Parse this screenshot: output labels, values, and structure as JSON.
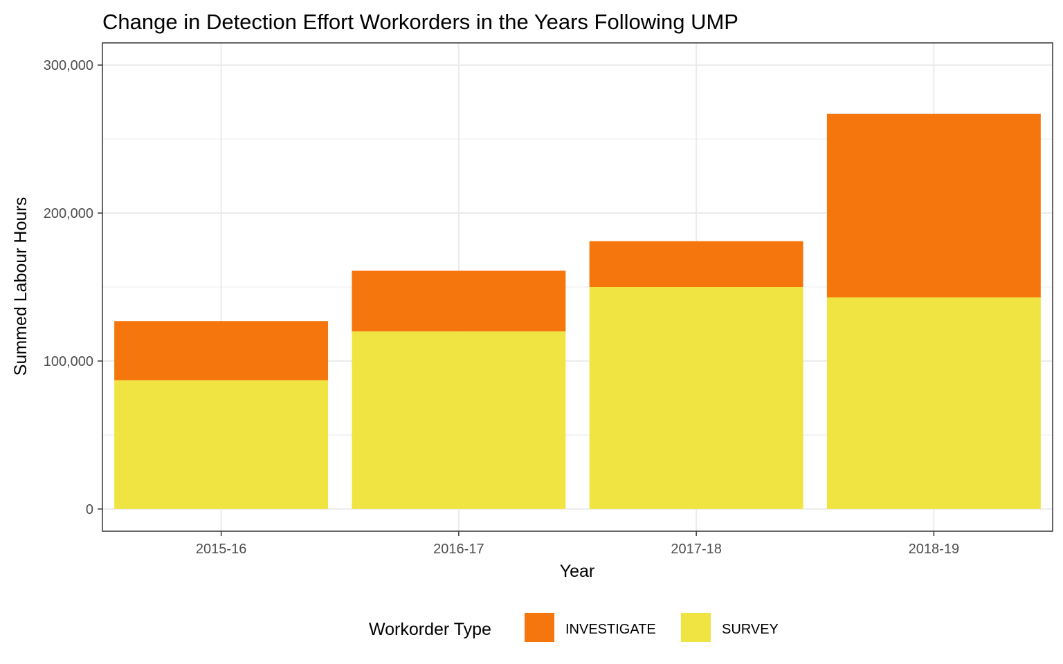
{
  "chart_data": {
    "type": "bar",
    "stacked": true,
    "title": "Change in Detection Effort Workorders in the Years Following UMP",
    "xlabel": "Year",
    "ylabel": "Summed Labour Hours",
    "categories": [
      "2015-16",
      "2016-17",
      "2017-18",
      "2018-19"
    ],
    "series": [
      {
        "name": "SURVEY",
        "color": "#efe442",
        "values": [
          87000,
          120000,
          150000,
          143000
        ]
      },
      {
        "name": "INVESTIGATE",
        "color": "#f5760c",
        "values": [
          40000,
          41000,
          31000,
          124000
        ]
      }
    ],
    "ylim": [
      -15000,
      315000
    ],
    "yticks": [
      0,
      100000,
      200000,
      300000
    ],
    "ytick_labels": [
      "0",
      "100,000",
      "200,000",
      "300,000"
    ],
    "grid": true,
    "legend": {
      "title": "Workorder Type",
      "position": "bottom",
      "order": [
        "INVESTIGATE",
        "SURVEY"
      ]
    }
  }
}
